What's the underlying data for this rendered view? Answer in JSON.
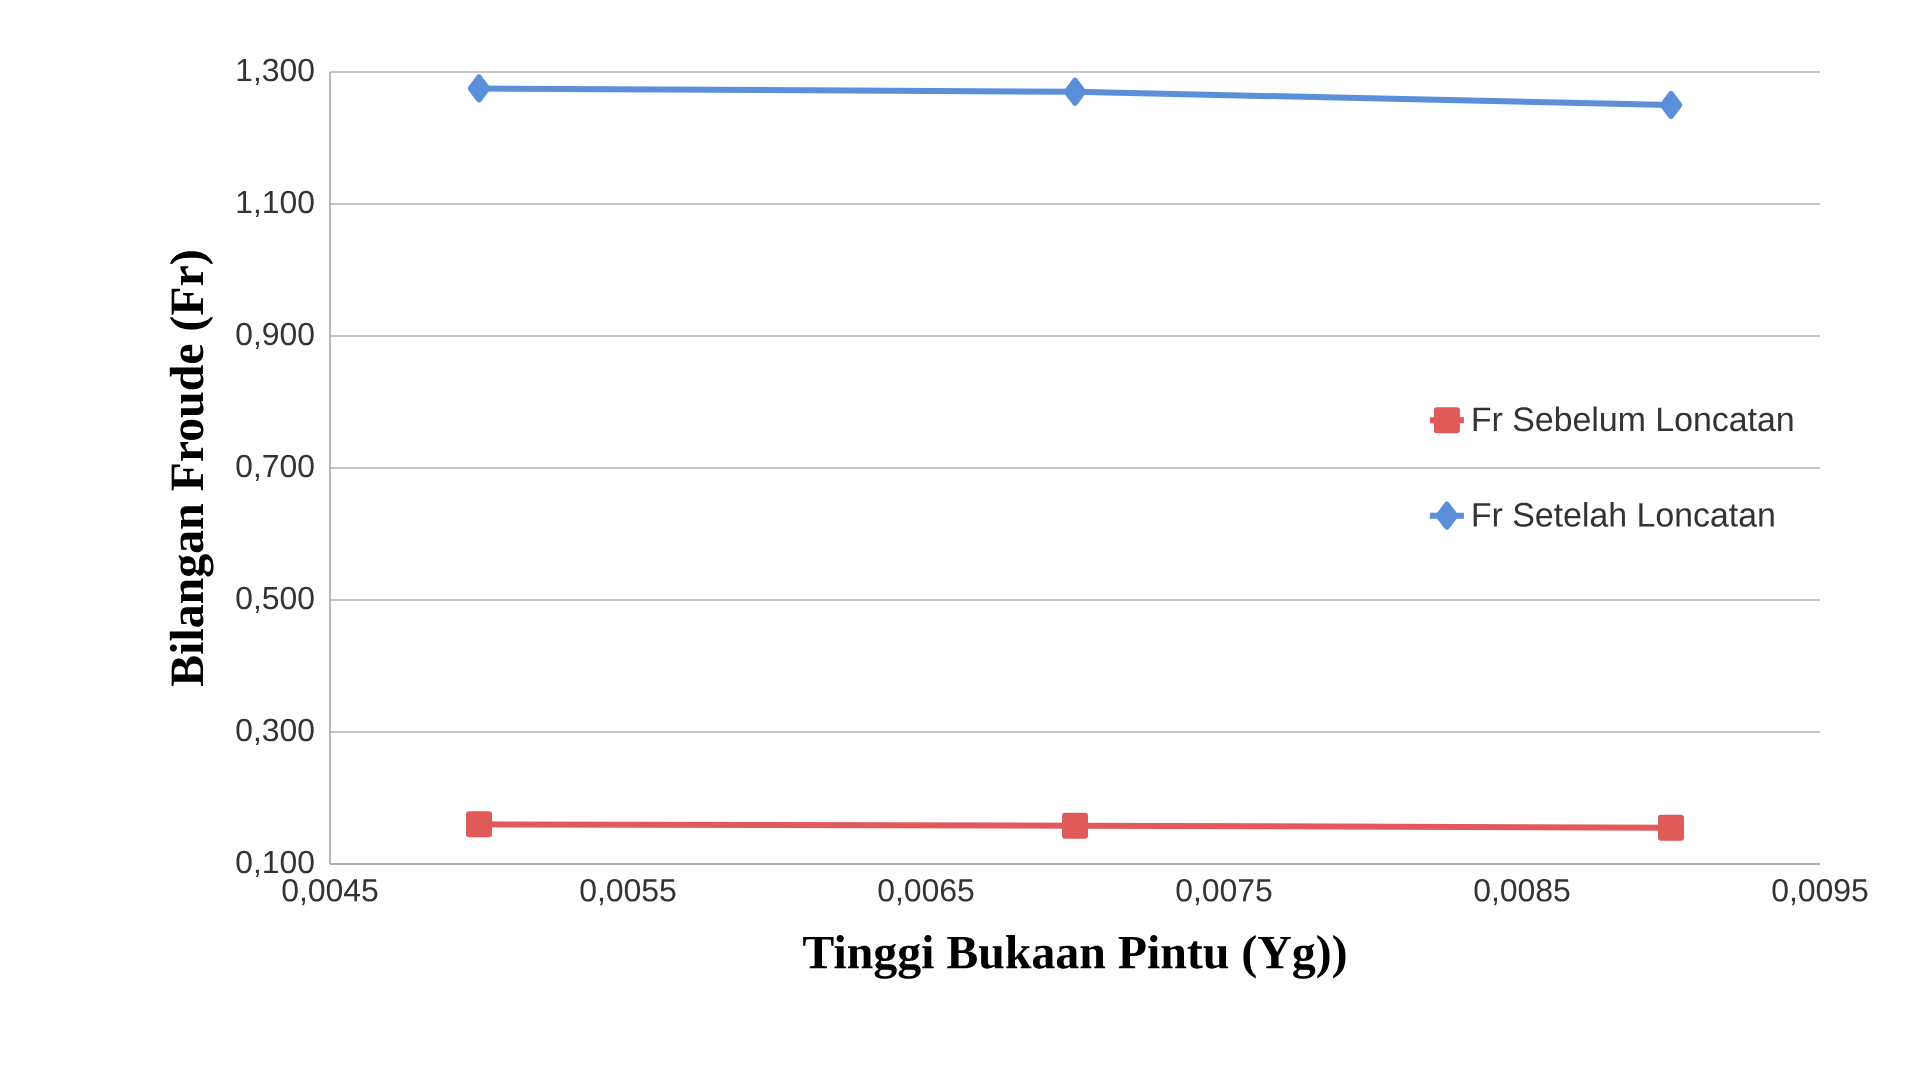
{
  "chart_data": {
    "type": "line",
    "xlabel": "Tinggi Bukaan Pintu (Yg))",
    "ylabel": "Bilangan Froude (Fr)",
    "x": [
      0.005,
      0.007,
      0.009
    ],
    "series": [
      {
        "name": "Fr Sebelum Loncatan",
        "color": "#e05a5a",
        "marker": "square",
        "values": [
          0.16,
          0.158,
          0.155
        ]
      },
      {
        "name": "Fr Setelah Loncatan",
        "color": "#5b8fd9",
        "marker": "diamond",
        "values": [
          1.275,
          1.27,
          1.25
        ]
      }
    ],
    "xlim": [
      0.0045,
      0.0095
    ],
    "xticks": [
      {
        "value": 0.0045,
        "label": "0,0045"
      },
      {
        "value": 0.0055,
        "label": "0,0055"
      },
      {
        "value": 0.0065,
        "label": "0,0065"
      },
      {
        "value": 0.0075,
        "label": "0,0075"
      },
      {
        "value": 0.0085,
        "label": "0,0085"
      },
      {
        "value": 0.0095,
        "label": "0,0095"
      }
    ],
    "ylim": [
      0.1,
      1.3
    ],
    "yticks": [
      {
        "value": 0.1,
        "label": "0,100"
      },
      {
        "value": 0.3,
        "label": "0,300"
      },
      {
        "value": 0.5,
        "label": "0,500"
      },
      {
        "value": 0.7,
        "label": "0,700"
      },
      {
        "value": 0.9,
        "label": "0,900"
      },
      {
        "value": 1.1,
        "label": "1,100"
      },
      {
        "value": 1.3,
        "label": "1,300"
      }
    ],
    "grid": "y",
    "legend": "right"
  }
}
